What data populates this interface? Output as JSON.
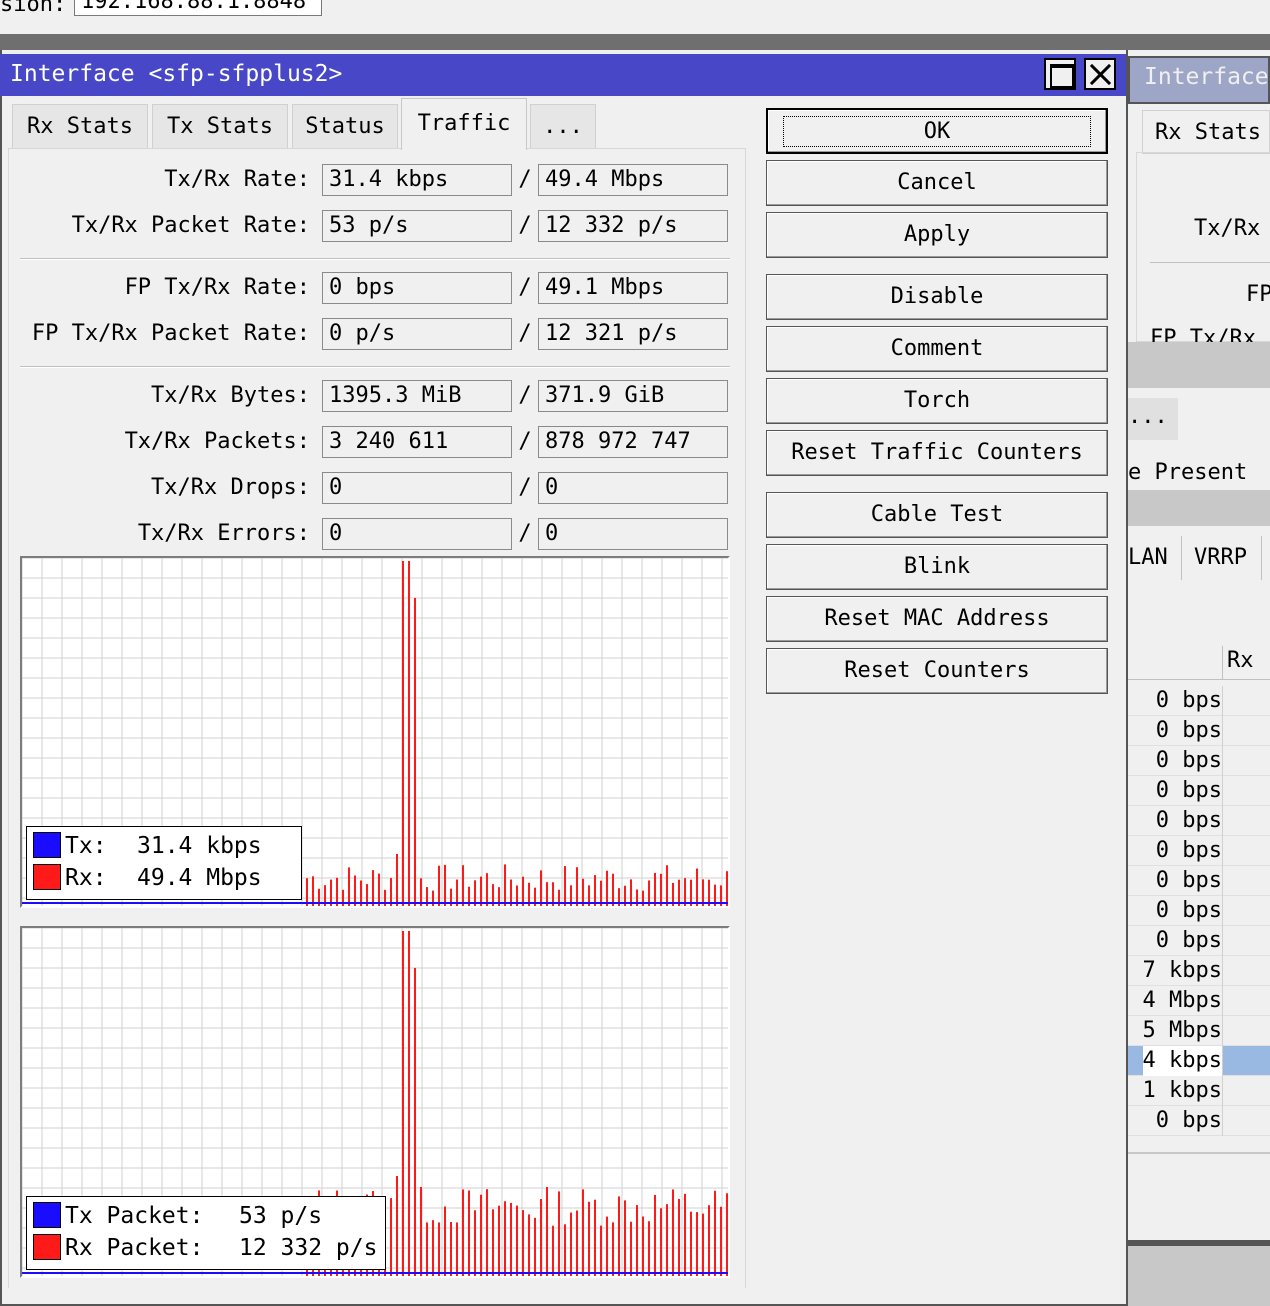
{
  "top": {
    "label": "sion:",
    "value": "192.168.88.1:8848"
  },
  "window": {
    "title": "Interface <sfp-sfpplus2>"
  },
  "tabs": [
    {
      "label": "Rx Stats"
    },
    {
      "label": "Tx Stats"
    },
    {
      "label": "Status"
    },
    {
      "label": "Traffic",
      "active": true
    },
    {
      "label": "..."
    }
  ],
  "fields": {
    "txrx_rate": {
      "label": "Tx/Rx Rate:",
      "tx": "31.4 kbps",
      "rx": "49.4 Mbps"
    },
    "txrx_packet_rate": {
      "label": "Tx/Rx Packet Rate:",
      "tx": "53 p/s",
      "rx": "12 332 p/s"
    },
    "fp_txrx_rate": {
      "label": "FP Tx/Rx Rate:",
      "tx": "0 bps",
      "rx": "49.1 Mbps"
    },
    "fp_txrx_packet_rate": {
      "label": "FP Tx/Rx Packet Rate:",
      "tx": "0 p/s",
      "rx": "12 321 p/s"
    },
    "txrx_bytes": {
      "label": "Tx/Rx Bytes:",
      "tx": "1395.3 MiB",
      "rx": "371.9 GiB"
    },
    "txrx_packets": {
      "label": "Tx/Rx Packets:",
      "tx": "3 240 611",
      "rx": "878 972 747"
    },
    "txrx_drops": {
      "label": "Tx/Rx Drops:",
      "tx": "0",
      "rx": "0"
    },
    "txrx_errors": {
      "label": "Tx/Rx Errors:",
      "tx": "0",
      "rx": "0"
    }
  },
  "slash": "/",
  "buttons": {
    "ok": "OK",
    "cancel": "Cancel",
    "apply": "Apply",
    "disable": "Disable",
    "comment": "Comment",
    "torch": "Torch",
    "reset_traffic": "Reset Traffic Counters",
    "cable_test": "Cable Test",
    "blink": "Blink",
    "reset_mac": "Reset MAC Address",
    "reset_counters": "Reset Counters"
  },
  "graph1_legend": {
    "tx_label": "Tx:",
    "tx_value": "31.4 kbps",
    "rx_label": "Rx:",
    "rx_value": "49.4 Mbps"
  },
  "graph2_legend": {
    "tx_label": "Tx Packet:",
    "tx_value": "53 p/s",
    "rx_label": "Rx Packet:",
    "rx_value": "12 332 p/s"
  },
  "colors": {
    "tx": "#1a0dff",
    "rx": "#ff1a1a",
    "title_bar": "#4747c7",
    "selected_row": "#99b8e2"
  },
  "right_window": {
    "title": "Interface",
    "tab": "Rx Stats",
    "frag_label1": "Tx/Rx",
    "frag_label2": "FP",
    "frag_label3": "FP Tx/Rx",
    "frag_tab": "...",
    "frag_text": "e Present",
    "frag_tab2": "LAN",
    "frag_tab3": "VRRP",
    "col_header": "Rx",
    "rates": [
      "0 bps",
      "0 bps",
      "0 bps",
      "0 bps",
      "0 bps",
      "0 bps",
      "0 bps",
      "0 bps",
      "0 bps",
      "7 kbps",
      "4 Mbps",
      "5 Mbps",
      "4 kbps",
      "1 kbps",
      "0 bps"
    ],
    "selected_index": 12
  }
}
